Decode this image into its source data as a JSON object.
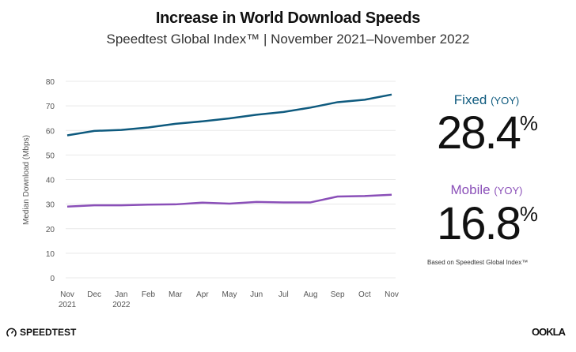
{
  "colors": {
    "fixed": "#0e5a7e",
    "mobile": "#8a4fb8",
    "grid": "#e8e8e8",
    "axis_text": "#555555"
  },
  "chart_data": {
    "type": "line",
    "title": "Increase in World Download Speeds",
    "subtitle": "Speedtest Global Index™ | November 2021–November 2022",
    "ylabel": "Median Download (Mbps)",
    "xlabel": "",
    "ylim": [
      0,
      80
    ],
    "yticks": [
      "0",
      "10",
      "20",
      "30",
      "40",
      "50",
      "60",
      "70",
      "80"
    ],
    "grid": true,
    "categories": [
      [
        "Nov",
        "2021"
      ],
      [
        "Dec",
        ""
      ],
      [
        "Jan",
        "2022"
      ],
      [
        "Feb",
        ""
      ],
      [
        "Mar",
        ""
      ],
      [
        "Apr",
        ""
      ],
      [
        "May",
        ""
      ],
      [
        "Jun",
        ""
      ],
      [
        "Jul",
        ""
      ],
      [
        "Aug",
        ""
      ],
      [
        "Sep",
        ""
      ],
      [
        "Oct",
        ""
      ],
      [
        "Nov",
        ""
      ]
    ],
    "series": [
      {
        "key": "fixed",
        "values": [
          58.0,
          59.8,
          60.2,
          61.2,
          62.7,
          63.7,
          64.9,
          66.4,
          67.5,
          69.3,
          71.5,
          72.5,
          74.6
        ]
      },
      {
        "key": "mobile",
        "values": [
          29.0,
          29.5,
          29.5,
          29.8,
          29.9,
          30.6,
          30.2,
          30.9,
          30.7,
          30.7,
          33.1,
          33.3,
          33.8
        ]
      }
    ]
  },
  "stats": {
    "fixed": {
      "label": "Fixed",
      "yoy": "(YOY)",
      "value": "28.4",
      "unit": "%"
    },
    "mobile": {
      "label": "Mobile",
      "yoy": "(YOY)",
      "value": "16.8",
      "unit": "%"
    },
    "note": "Based on Speedtest Global Index™"
  },
  "footer": {
    "brand": "SPEEDTEST",
    "brand_icon": "gauge-icon",
    "ookla": "OOKLA"
  }
}
